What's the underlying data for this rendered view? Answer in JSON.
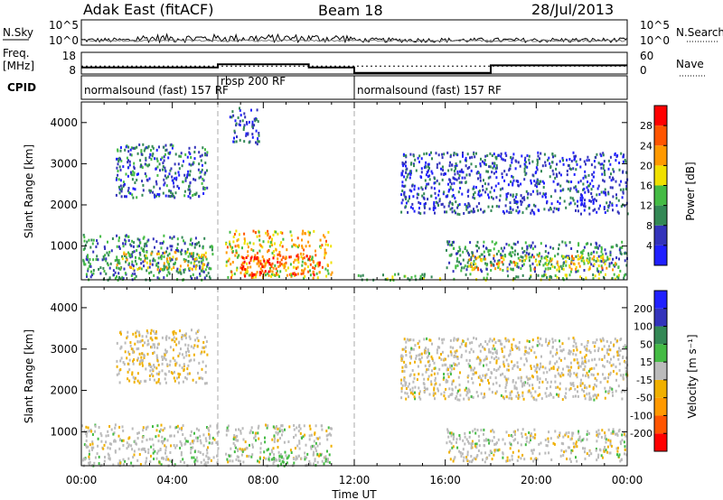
{
  "header": {
    "station": "Adak East (fitACF)",
    "beam": "Beam 18",
    "date": "28/Jul/2013"
  },
  "noise_panel": {
    "left_label": "N.Sky",
    "right_label": "N.Search",
    "left_ticks": [
      "10^5",
      "10^0"
    ],
    "right_ticks": [
      "10^5",
      "10^0"
    ]
  },
  "freq_panel": {
    "left_label_line1": "Freq.",
    "left_label_line2": "[MHz]",
    "right_label": "Nave",
    "left_ticks": [
      "18",
      "8"
    ],
    "right_ticks": [
      "60",
      "0"
    ],
    "freq_mhz": [
      {
        "t0": 0,
        "t1": 6,
        "value": 11
      },
      {
        "t0": 6,
        "t1": 10,
        "value": 12.5
      },
      {
        "t0": 10,
        "t1": 12,
        "value": 11
      },
      {
        "t0": 12,
        "t1": 18,
        "value": 8.5
      },
      {
        "t0": 18,
        "t1": 24,
        "value": 12
      }
    ],
    "nave": [
      {
        "t0": 0,
        "t1": 24,
        "value": 22
      }
    ]
  },
  "cpid_panel": {
    "label": "CPID",
    "segments": [
      {
        "t0": 0,
        "t1": 6,
        "text": "normalsound (fast) 157 RF"
      },
      {
        "t0": 6,
        "t1": 12,
        "text": "rbsp 200 RF"
      },
      {
        "t0": 12,
        "t1": 24,
        "text": "normalsound (fast) 157 RF"
      }
    ]
  },
  "chart_data": [
    {
      "type": "heatmap",
      "ylabel": "Slant Range [km]",
      "colorbar_label": "Power [dB]",
      "colorbar_ticks": [
        "28",
        "24",
        "20",
        "16",
        "12",
        "8",
        "4"
      ],
      "colorbar_range": [
        0,
        32
      ],
      "colorbar_colors": [
        "#2020ff",
        "#3333bb",
        "#338855",
        "#44bb44",
        "#f0e000",
        "#ff9900",
        "#ff5500",
        "#ff0000"
      ],
      "ylim": [
        180,
        4500
      ],
      "yticks": [
        1000,
        2000,
        3000,
        4000
      ],
      "xlim": [
        0,
        24
      ],
      "regions": [
        {
          "t0": 0.0,
          "t1": 5.8,
          "r0": 200,
          "r1": 1300,
          "value": 10
        },
        {
          "t0": 1.5,
          "t1": 5.5,
          "r0": 450,
          "r1": 900,
          "value": 17
        },
        {
          "t0": 1.5,
          "t1": 5.5,
          "r0": 2200,
          "r1": 3500,
          "value": 8
        },
        {
          "t0": 6.3,
          "t1": 11.0,
          "r0": 250,
          "r1": 1400,
          "value": 20
        },
        {
          "t0": 7.0,
          "t1": 10.5,
          "r0": 300,
          "r1": 800,
          "value": 27
        },
        {
          "t0": 6.5,
          "t1": 7.8,
          "r0": 3500,
          "r1": 4400,
          "value": 6
        },
        {
          "t0": 12.0,
          "t1": 24.0,
          "r0": 200,
          "r1": 350,
          "value": 14
        },
        {
          "t0": 16.0,
          "t1": 24.0,
          "r0": 400,
          "r1": 1150,
          "value": 10
        },
        {
          "t0": 17.0,
          "t1": 23.5,
          "r0": 450,
          "r1": 800,
          "value": 19
        },
        {
          "t0": 14.0,
          "t1": 24.0,
          "r0": 1800,
          "r1": 3300,
          "value": 6
        }
      ]
    },
    {
      "type": "heatmap",
      "ylabel": "Slant Range [km]",
      "colorbar_label": "Velocity [m s⁻¹]",
      "colorbar_ticks": [
        "200",
        "100",
        "50",
        "15",
        "-15",
        "-50",
        "-100",
        "-200"
      ],
      "colorbar_range": [
        -250,
        250
      ],
      "colorbar_colors": [
        "#ff0000",
        "#ff5500",
        "#ff9900",
        "#f0b000",
        "#bbbbbb",
        "#44bb44",
        "#338855",
        "#3333bb",
        "#2020ff"
      ],
      "ylim": [
        180,
        4500
      ],
      "yticks": [
        1000,
        2000,
        3000,
        4000
      ],
      "xlim": [
        0,
        24
      ],
      "xticks": [
        "00:00",
        "04:00",
        "08:00",
        "12:00",
        "16:00",
        "20:00",
        "00:00"
      ],
      "xlabel": "Time UT",
      "regions": [
        {
          "t0": 0.0,
          "t1": 6.0,
          "r0": 200,
          "r1": 1200,
          "value": 0
        },
        {
          "t0": 6.3,
          "t1": 11.0,
          "r0": 300,
          "r1": 1200,
          "value": 0
        },
        {
          "t0": 8.0,
          "t1": 11.0,
          "r0": 200,
          "r1": 500,
          "value": 30
        },
        {
          "t0": 1.5,
          "t1": 5.5,
          "r0": 2200,
          "r1": 3500,
          "value": -20
        },
        {
          "t0": 16.0,
          "t1": 24.0,
          "r0": 300,
          "r1": 1100,
          "value": 0
        },
        {
          "t0": 14.0,
          "t1": 24.0,
          "r0": 1800,
          "r1": 3300,
          "value": -10
        }
      ]
    }
  ]
}
